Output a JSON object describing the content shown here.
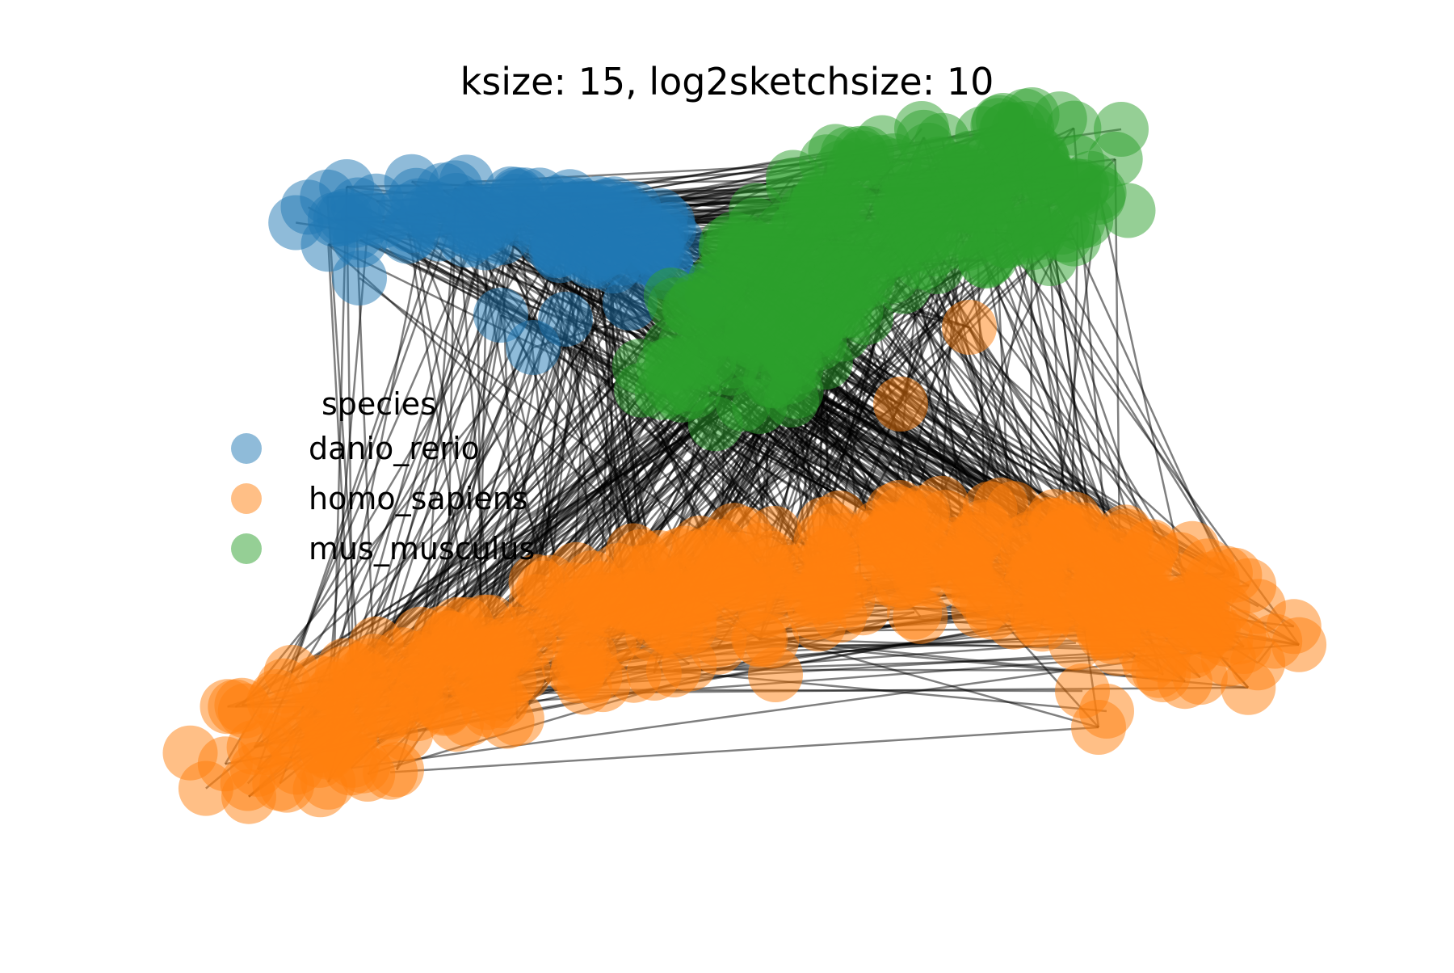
{
  "title": "ksize: 15, log2sketchsize: 10",
  "legend": {
    "title": "species",
    "items": [
      {
        "label": "danio_rerio",
        "color": "#1f77b4"
      },
      {
        "label": "homo_sapiens",
        "color": "#ff7f0e"
      },
      {
        "label": "mus_musculus",
        "color": "#2ca02c"
      }
    ]
  },
  "edge_color": "#000000"
}
